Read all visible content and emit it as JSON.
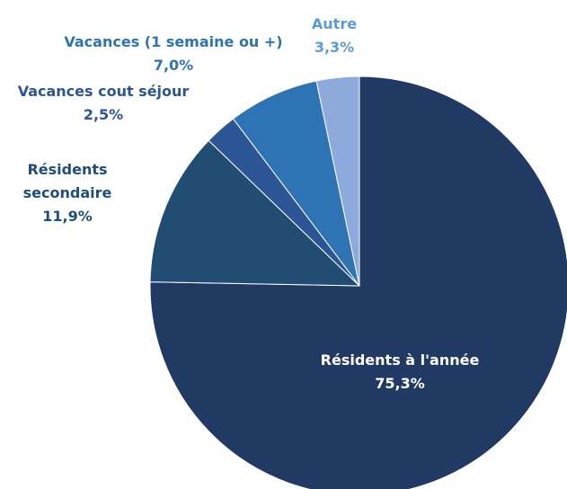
{
  "chart_data": {
    "type": "pie",
    "categories": [
      "Résidents à l'année",
      "Résidents secondaire",
      "Vacances cout séjour",
      "Vacances (1 semaine ou +)",
      "Autre"
    ],
    "values": [
      75.3,
      11.9,
      2.5,
      7.0,
      3.3
    ],
    "value_labels": [
      "75,3%",
      "11,9%",
      "2,5%",
      "7,0%",
      "3,3%"
    ],
    "colors": [
      "#213a63",
      "#224d73",
      "#2c5595",
      "#2e74b5",
      "#8eaadc"
    ],
    "label_colors": [
      "#ffffff",
      "#1f4e79",
      "#2c5595",
      "#2e74b5",
      "#5b9bd5"
    ]
  }
}
